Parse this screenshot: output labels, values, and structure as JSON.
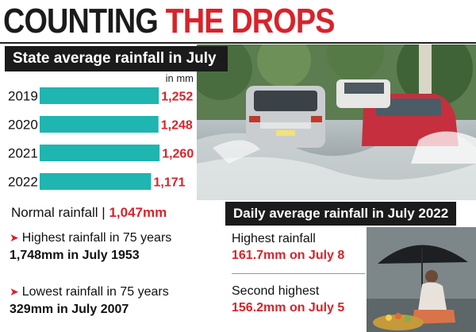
{
  "headline": {
    "part1": "COUNTING",
    "part2": "THE DROPS"
  },
  "banner": "State average rainfall in July",
  "chart_data": {
    "type": "bar",
    "orientation": "horizontal",
    "unit_label": "in mm",
    "categories": [
      "2019",
      "2020",
      "2021",
      "2022"
    ],
    "values": [
      1252,
      1248,
      1260,
      1171
    ],
    "value_labels": [
      "1,252",
      "1,248",
      "1,260",
      "1,171"
    ],
    "bar_color": "#1fb5b0",
    "label_color": "#d8232a",
    "xlim": [
      0,
      1400
    ]
  },
  "normal": {
    "label": "Normal rainfall |",
    "value": "1,047mm"
  },
  "highest_75": {
    "label": "Highest rainfall in 75 years",
    "value": "1,748mm in July 1953"
  },
  "lowest_75": {
    "label": "Lowest rainfall in 75 years",
    "value": "329mm in July 2007"
  },
  "daily": {
    "title": "Daily average rainfall in July 2022",
    "highest": {
      "label": "Highest rainfall",
      "value": "161.7mm on July 8"
    },
    "second": {
      "label": "Second highest",
      "value": "156.2mm on July 5"
    }
  },
  "colors": {
    "accent": "#d8232a",
    "bar": "#1fb5b0",
    "banner": "#1b1b1b"
  }
}
